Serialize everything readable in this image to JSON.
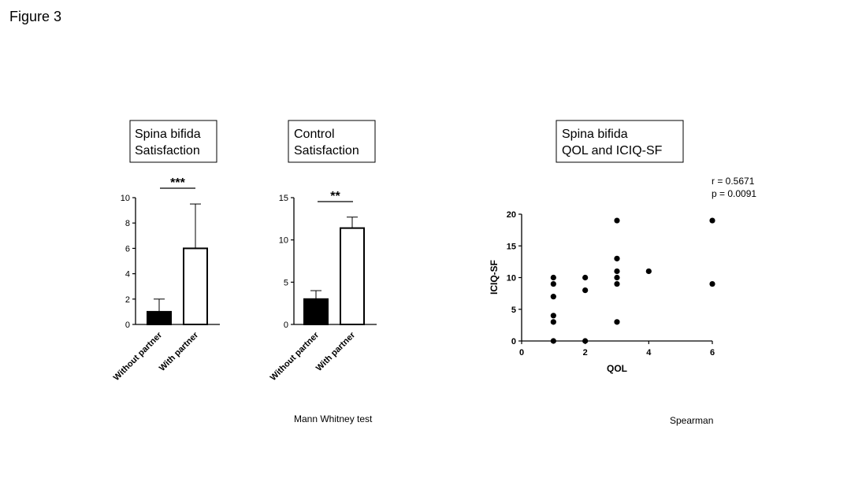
{
  "figure_label": "Figure 3",
  "chart_data": [
    {
      "type": "bar",
      "title_lines": [
        "Spina bifida",
        "Satisfaction"
      ],
      "categories": [
        "Without partner",
        "With partner"
      ],
      "values": [
        1,
        6
      ],
      "error_upper": [
        2,
        9.5
      ],
      "bar_fills": [
        "#000000",
        "#ffffff"
      ],
      "ylim": [
        0,
        10
      ],
      "yticks": [
        0,
        2,
        4,
        6,
        8,
        10
      ],
      "significance": "***"
    },
    {
      "type": "bar",
      "title_lines": [
        "Control",
        "Satisfaction"
      ],
      "categories": [
        "Without partner",
        "With partner"
      ],
      "values": [
        3,
        11.4
      ],
      "error_upper": [
        4,
        12.7
      ],
      "bar_fills": [
        "#000000",
        "#ffffff"
      ],
      "ylim": [
        0,
        15
      ],
      "yticks": [
        0,
        5,
        10,
        15
      ],
      "significance": "**"
    },
    {
      "type": "scatter",
      "title_lines": [
        "Spina bifida",
        "QOL and ICIQ-SF"
      ],
      "xlabel": "QOL",
      "ylabel": "ICIQ-SF",
      "xlim": [
        0,
        6
      ],
      "ylim": [
        0,
        20
      ],
      "xticks": [
        0,
        2,
        4,
        6
      ],
      "yticks": [
        0,
        5,
        10,
        15,
        20
      ],
      "points": [
        {
          "x": 1,
          "y": 10
        },
        {
          "x": 1,
          "y": 9
        },
        {
          "x": 1,
          "y": 7
        },
        {
          "x": 1,
          "y": 4
        },
        {
          "x": 1,
          "y": 3
        },
        {
          "x": 1,
          "y": 0
        },
        {
          "x": 2,
          "y": 10
        },
        {
          "x": 2,
          "y": 8
        },
        {
          "x": 2,
          "y": 0
        },
        {
          "x": 3,
          "y": 19
        },
        {
          "x": 3,
          "y": 13
        },
        {
          "x": 3,
          "y": 11
        },
        {
          "x": 3,
          "y": 10
        },
        {
          "x": 3,
          "y": 9
        },
        {
          "x": 3,
          "y": 3
        },
        {
          "x": 4,
          "y": 11
        },
        {
          "x": 6,
          "y": 19
        },
        {
          "x": 6,
          "y": 9
        }
      ],
      "stats": [
        "r = 0.5671",
        "p = 0.0091"
      ]
    }
  ],
  "captions": {
    "bar_test": "Mann Whitney test",
    "scatter_test": "Spearman"
  }
}
